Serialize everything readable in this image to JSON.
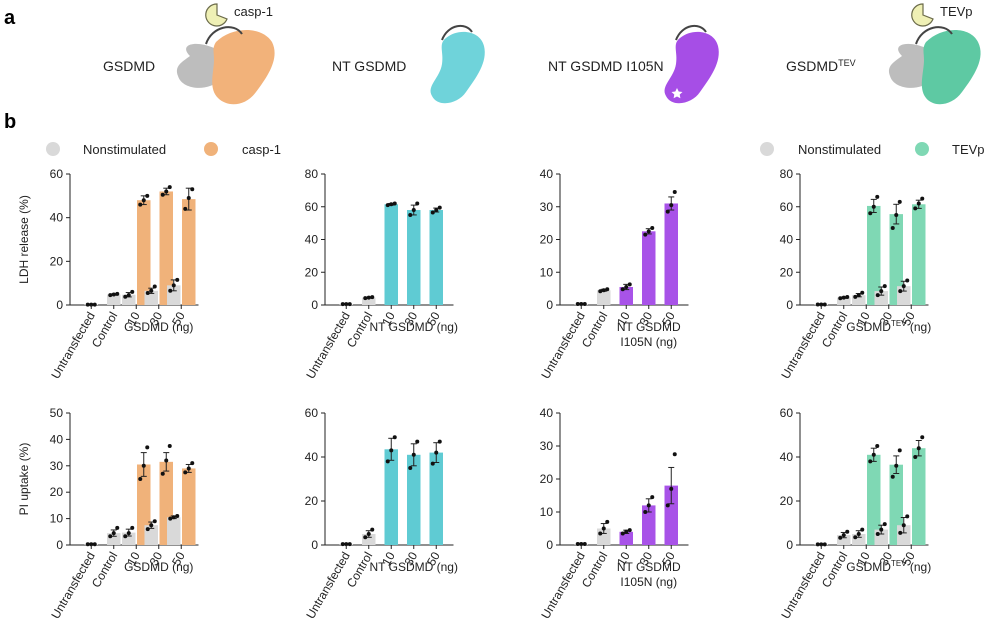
{
  "panel_a": {
    "letter": "a",
    "constructs": [
      {
        "label": "GSDMD",
        "protease": "casp-1",
        "color": "#f2b27a",
        "other": "#bfbfbf"
      },
      {
        "label": "NT GSDMD",
        "color": "#6fd3da"
      },
      {
        "label": "NT GSDMD I105N",
        "color": "#a64ee6"
      },
      {
        "label": "GSDMD",
        "label_sup": "TEV",
        "protease": "TEVp",
        "color": "#5ec9a3",
        "other": "#bfbfbf"
      }
    ]
  },
  "panel_b": {
    "letter": "b",
    "legend_left": [
      {
        "label": "Nonstimulated",
        "color": "#d9d9d9"
      },
      {
        "label": "casp-1",
        "color": "#f0b27a"
      }
    ],
    "legend_right": [
      {
        "label": "Nonstimulated",
        "color": "#d9d9d9"
      },
      {
        "label": "TEVp",
        "color": "#7fd8b4"
      }
    ]
  },
  "colors": {
    "nonstimulated": "#d9d9d9",
    "casp1": "#f0b27a",
    "nt": "#5fcbd3",
    "i105n": "#a853e8",
    "tevp": "#7fd8b4"
  },
  "chart_data": [
    {
      "type": "bar",
      "row": 1,
      "col": 1,
      "ylabel": "LDH release (%)",
      "ylim": [
        0,
        60
      ],
      "yticks": [
        0,
        20,
        40,
        60
      ],
      "categories": [
        "Untransfected",
        "Control",
        "10",
        "30",
        "50"
      ],
      "xlabel_lines": [
        "GSDMD (ng)"
      ],
      "bars": [
        {
          "cat": 0,
          "group": "nonstimulated",
          "value": 0.2,
          "err": 0,
          "points": [
            0.2,
            0.2,
            0.2
          ]
        },
        {
          "cat": 1,
          "group": "nonstimulated",
          "value": 4.8,
          "err": 0.3,
          "points": [
            4.5,
            4.8,
            5.1
          ]
        },
        {
          "cat": 2,
          "group": "nonstimulated",
          "value": 4.7,
          "err": 1.0,
          "points": [
            3.8,
            4.5,
            6.0
          ]
        },
        {
          "cat": 2,
          "group": "casp1",
          "value": 48,
          "err": 2,
          "points": [
            46,
            48,
            50
          ]
        },
        {
          "cat": 3,
          "group": "nonstimulated",
          "value": 6.5,
          "err": 1.2,
          "points": [
            5.5,
            6.5,
            8.5
          ]
        },
        {
          "cat": 3,
          "group": "casp1",
          "value": 52,
          "err": 1.5,
          "points": [
            50.5,
            52,
            54
          ]
        },
        {
          "cat": 4,
          "group": "nonstimulated",
          "value": 9,
          "err": 2.5,
          "points": [
            6.5,
            9,
            11.5
          ]
        },
        {
          "cat": 4,
          "group": "casp1",
          "value": 48.5,
          "err": 5,
          "points": [
            44,
            49,
            53
          ]
        }
      ]
    },
    {
      "type": "bar",
      "row": 1,
      "col": 2,
      "ylabel": "",
      "ylim": [
        0,
        80
      ],
      "yticks": [
        0,
        20,
        40,
        60,
        80
      ],
      "categories": [
        "Untransfected",
        "Control",
        "10",
        "30",
        "50"
      ],
      "xlabel_lines": [
        "NT GSDMD (ng)"
      ],
      "bars": [
        {
          "cat": 0,
          "group": "nonstimulated",
          "value": 0.5,
          "err": 0,
          "points": [
            0.5,
            0.5,
            0.5
          ]
        },
        {
          "cat": 1,
          "group": "nonstimulated",
          "value": 4.5,
          "err": 0.3,
          "points": [
            4.2,
            4.5,
            4.8
          ]
        },
        {
          "cat": 2,
          "group": "nt",
          "value": 61.5,
          "err": 0.5,
          "points": [
            61,
            61.5,
            62
          ]
        },
        {
          "cat": 3,
          "group": "nt",
          "value": 58,
          "err": 3,
          "points": [
            55,
            58,
            62
          ]
        },
        {
          "cat": 4,
          "group": "nt",
          "value": 58,
          "err": 1.2,
          "points": [
            56.5,
            58,
            59.5
          ]
        }
      ]
    },
    {
      "type": "bar",
      "row": 1,
      "col": 3,
      "ylabel": "",
      "ylim": [
        0,
        40
      ],
      "yticks": [
        0,
        10,
        20,
        30,
        40
      ],
      "categories": [
        "Untransfected",
        "Control",
        "10",
        "30",
        "50"
      ],
      "xlabel_lines": [
        "NT GSDMD",
        "I105N (ng)"
      ],
      "bars": [
        {
          "cat": 0,
          "group": "nonstimulated",
          "value": 0.3,
          "err": 0,
          "points": [
            0.3,
            0.3,
            0.3
          ]
        },
        {
          "cat": 1,
          "group": "nonstimulated",
          "value": 4.5,
          "err": 0.3,
          "points": [
            4.2,
            4.5,
            4.8
          ]
        },
        {
          "cat": 2,
          "group": "i105n",
          "value": 5.5,
          "err": 0.8,
          "points": [
            4.8,
            5.5,
            6.3
          ]
        },
        {
          "cat": 3,
          "group": "i105n",
          "value": 22.5,
          "err": 0.8,
          "points": [
            21.5,
            22.5,
            23.5
          ]
        },
        {
          "cat": 4,
          "group": "i105n",
          "value": 31,
          "err": 2,
          "points": [
            28.5,
            30.5,
            34.5
          ]
        }
      ]
    },
    {
      "type": "bar",
      "row": 1,
      "col": 4,
      "ylabel": "",
      "ylim": [
        0,
        80
      ],
      "yticks": [
        0,
        20,
        40,
        60,
        80
      ],
      "categories": [
        "Untransfected",
        "Control",
        "10",
        "30",
        "50"
      ],
      "xlabel_lines": [
        "GSDMD|TEV| (ng)"
      ],
      "bars": [
        {
          "cat": 0,
          "group": "nonstimulated",
          "value": 0.3,
          "err": 0,
          "points": [
            0.3,
            0.3,
            0.3
          ]
        },
        {
          "cat": 1,
          "group": "nonstimulated",
          "value": 4.5,
          "err": 0.4,
          "points": [
            4.1,
            4.5,
            4.9
          ]
        },
        {
          "cat": 2,
          "group": "nonstimulated",
          "value": 6,
          "err": 1,
          "points": [
            5,
            6,
            7.5
          ]
        },
        {
          "cat": 2,
          "group": "tevp",
          "value": 60.5,
          "err": 4,
          "points": [
            56,
            60,
            66
          ]
        },
        {
          "cat": 3,
          "group": "nonstimulated",
          "value": 8.5,
          "err": 2.5,
          "points": [
            6,
            8.5,
            11.5
          ]
        },
        {
          "cat": 3,
          "group": "tevp",
          "value": 55.5,
          "err": 6,
          "points": [
            47,
            55,
            63
          ]
        },
        {
          "cat": 4,
          "group": "nonstimulated",
          "value": 11.5,
          "err": 3,
          "points": [
            8.5,
            11.5,
            15
          ]
        },
        {
          "cat": 4,
          "group": "tevp",
          "value": 61.5,
          "err": 2.5,
          "points": [
            59,
            62,
            65
          ]
        }
      ]
    },
    {
      "type": "bar",
      "row": 2,
      "col": 1,
      "ylabel": "PI uptake (%)",
      "ylim": [
        0,
        50
      ],
      "yticks": [
        0,
        10,
        20,
        30,
        40,
        50
      ],
      "categories": [
        "Untransfected",
        "Control",
        "10",
        "30",
        "50"
      ],
      "xlabel_lines": [
        "GSDMD (ng)"
      ],
      "bars": [
        {
          "cat": 0,
          "group": "nonstimulated",
          "value": 0.3,
          "err": 0,
          "points": [
            0.3,
            0.3,
            0.3
          ]
        },
        {
          "cat": 1,
          "group": "nonstimulated",
          "value": 4.5,
          "err": 1.2,
          "points": [
            3.3,
            4.5,
            6.5
          ]
        },
        {
          "cat": 2,
          "group": "nonstimulated",
          "value": 4.7,
          "err": 1.3,
          "points": [
            3.3,
            4.5,
            6.5
          ]
        },
        {
          "cat": 2,
          "group": "casp1",
          "value": 30.5,
          "err": 4.5,
          "points": [
            25,
            30,
            37
          ]
        },
        {
          "cat": 3,
          "group": "nonstimulated",
          "value": 7.5,
          "err": 1.2,
          "points": [
            6,
            7.5,
            9
          ]
        },
        {
          "cat": 3,
          "group": "casp1",
          "value": 31.5,
          "err": 3.5,
          "points": [
            27,
            32,
            37.5
          ]
        },
        {
          "cat": 4,
          "group": "nonstimulated",
          "value": 10.5,
          "err": 0.5,
          "points": [
            10,
            10.5,
            11
          ]
        },
        {
          "cat": 4,
          "group": "casp1",
          "value": 29,
          "err": 1.5,
          "points": [
            27.5,
            29,
            31
          ]
        }
      ]
    },
    {
      "type": "bar",
      "row": 2,
      "col": 2,
      "ylabel": "",
      "ylim": [
        0,
        60
      ],
      "yticks": [
        0,
        20,
        40,
        60
      ],
      "categories": [
        "Untransfected",
        "Control",
        "10",
        "30",
        "50"
      ],
      "xlabel_lines": [
        "NT GSDMD (ng)"
      ],
      "bars": [
        {
          "cat": 0,
          "group": "nonstimulated",
          "value": 0.4,
          "err": 0,
          "points": [
            0.4,
            0.4,
            0.4
          ]
        },
        {
          "cat": 1,
          "group": "nonstimulated",
          "value": 5,
          "err": 1.5,
          "points": [
            3.5,
            5,
            7
          ]
        },
        {
          "cat": 2,
          "group": "nt",
          "value": 43.5,
          "err": 5,
          "points": [
            38,
            43,
            49
          ]
        },
        {
          "cat": 3,
          "group": "nt",
          "value": 41,
          "err": 5,
          "points": [
            35,
            41,
            47
          ]
        },
        {
          "cat": 4,
          "group": "nt",
          "value": 42,
          "err": 4.5,
          "points": [
            37,
            42,
            47
          ]
        }
      ]
    },
    {
      "type": "bar",
      "row": 2,
      "col": 3,
      "ylabel": "",
      "ylim": [
        0,
        40
      ],
      "yticks": [
        0,
        10,
        20,
        30,
        40
      ],
      "categories": [
        "Untransfected",
        "Control",
        "10",
        "30",
        "50"
      ],
      "xlabel_lines": [
        "NT GSDMD",
        "I105N (ng)"
      ],
      "bars": [
        {
          "cat": 0,
          "group": "nonstimulated",
          "value": 0.3,
          "err": 0,
          "points": [
            0.3,
            0.3,
            0.3
          ]
        },
        {
          "cat": 1,
          "group": "nonstimulated",
          "value": 5,
          "err": 1.5,
          "points": [
            3.5,
            5,
            7
          ]
        },
        {
          "cat": 2,
          "group": "i105n",
          "value": 4,
          "err": 0.5,
          "points": [
            3.5,
            4,
            4.5
          ]
        },
        {
          "cat": 3,
          "group": "i105n",
          "value": 12,
          "err": 2,
          "points": [
            10,
            12,
            14.5
          ]
        },
        {
          "cat": 4,
          "group": "i105n",
          "value": 18,
          "err": 5.5,
          "points": [
            12,
            17,
            27.5
          ]
        }
      ]
    },
    {
      "type": "bar",
      "row": 2,
      "col": 4,
      "ylabel": "",
      "ylim": [
        0,
        60
      ],
      "yticks": [
        0,
        20,
        40,
        60
      ],
      "categories": [
        "Untransfected",
        "Control",
        "10",
        "30",
        "50"
      ],
      "xlabel_lines": [
        "GSDMD|TEV| (ng)"
      ],
      "bars": [
        {
          "cat": 0,
          "group": "nonstimulated",
          "value": 0.3,
          "err": 0,
          "points": [
            0.3,
            0.3,
            0.3
          ]
        },
        {
          "cat": 1,
          "group": "nonstimulated",
          "value": 4.5,
          "err": 1.2,
          "points": [
            3.3,
            4.5,
            6
          ]
        },
        {
          "cat": 2,
          "group": "nonstimulated",
          "value": 5,
          "err": 1.5,
          "points": [
            3.5,
            5,
            7
          ]
        },
        {
          "cat": 2,
          "group": "tevp",
          "value": 41,
          "err": 3,
          "points": [
            38,
            41,
            45
          ]
        },
        {
          "cat": 3,
          "group": "nonstimulated",
          "value": 7,
          "err": 2,
          "points": [
            5,
            7,
            9.5
          ]
        },
        {
          "cat": 3,
          "group": "tevp",
          "value": 36.5,
          "err": 4,
          "points": [
            31,
            36,
            43
          ]
        },
        {
          "cat": 4,
          "group": "nonstimulated",
          "value": 9,
          "err": 3.5,
          "points": [
            5.5,
            9,
            13
          ]
        },
        {
          "cat": 4,
          "group": "tevp",
          "value": 44,
          "err": 3.5,
          "points": [
            40,
            44,
            49
          ]
        }
      ]
    }
  ]
}
